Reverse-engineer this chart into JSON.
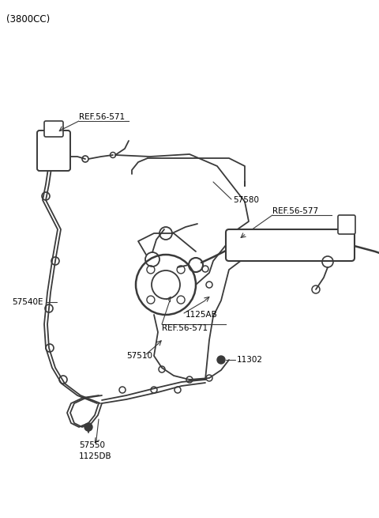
{
  "title": "(3800CC)",
  "background_color": "#ffffff",
  "line_color": "#3a3a3a",
  "text_color": "#000000",
  "figsize": [
    4.8,
    6.55
  ],
  "dpi": 100,
  "xlim": [
    0,
    480
  ],
  "ylim": [
    0,
    655
  ]
}
